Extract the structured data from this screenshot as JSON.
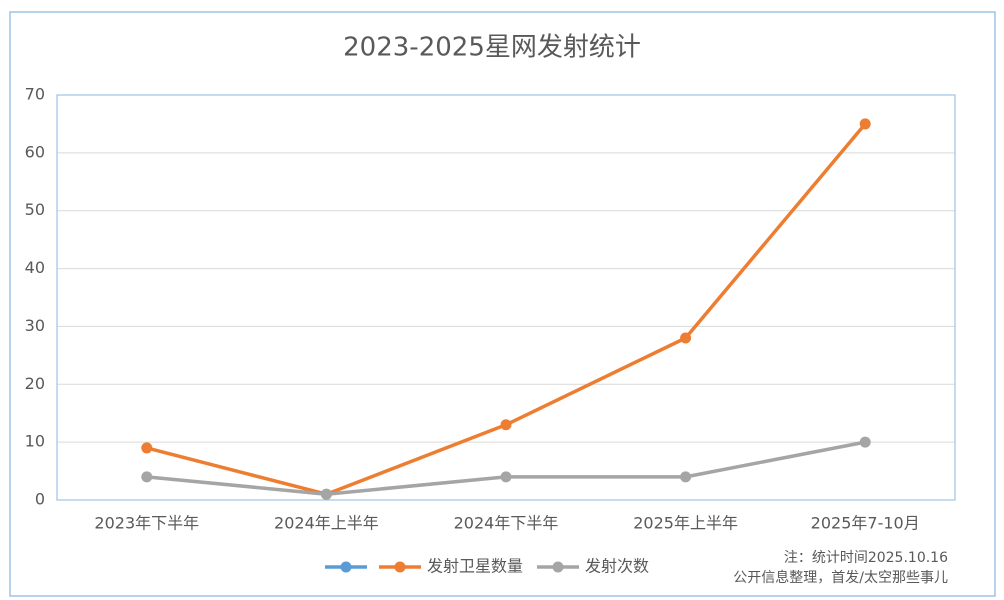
{
  "chart_data": {
    "type": "line",
    "title": "2023-2025星网发射统计",
    "categories": [
      "2023年下半年",
      "2024年上半年",
      "2024年下半年",
      "2025年上半年",
      "2025年7-10月"
    ],
    "series": [
      {
        "name": null,
        "color": "#5b9bd5",
        "values": [
          null,
          null,
          null,
          null,
          null
        ]
      },
      {
        "name": "发射卫星数量",
        "color": "#ed7d31",
        "values": [
          9,
          1,
          13,
          28,
          65
        ]
      },
      {
        "name": "发射次数",
        "color": "#a5a5a5",
        "values": [
          4,
          1,
          4,
          4,
          10
        ]
      }
    ],
    "ylim": [
      0,
      70
    ],
    "yticks": [
      0,
      10,
      20,
      30,
      40,
      50,
      60,
      70
    ],
    "grid": true,
    "annotations": [
      "注：统计时间2025.10.16",
      "公开信息整理，首发/太空那些事儿"
    ]
  }
}
